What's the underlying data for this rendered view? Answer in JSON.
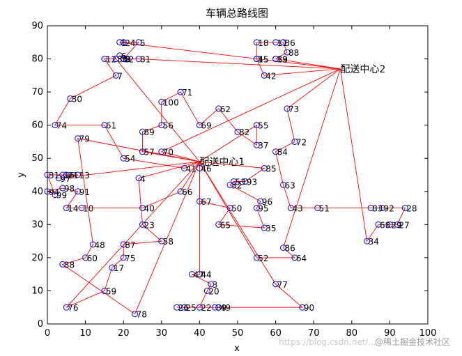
{
  "chart_data": {
    "type": "scatter",
    "title": "车辆总路线图",
    "xlabel": "x",
    "ylabel": "y",
    "xlim": [
      0,
      100
    ],
    "ylim": [
      0,
      90
    ],
    "xticks": [
      0,
      10,
      20,
      30,
      40,
      50,
      60,
      70,
      80,
      90,
      100
    ],
    "yticks": [
      0,
      10,
      20,
      30,
      40,
      50,
      60,
      70,
      80,
      90
    ],
    "grid": false,
    "marker_color": "#0000ff",
    "line_color": "#ff0000",
    "centers": [
      {
        "label": "配送中心1",
        "x": 40,
        "y": 49
      },
      {
        "label": "配送中心2",
        "x": 77,
        "y": 77
      }
    ],
    "points": [
      {
        "label": "1",
        "x": 19,
        "y": 85
      },
      {
        "label": "2",
        "x": 21,
        "y": 80
      },
      {
        "label": "3",
        "x": 43,
        "y": 12
      },
      {
        "label": "4",
        "x": 24,
        "y": 44
      },
      {
        "label": "5",
        "x": 24,
        "y": 85
      },
      {
        "label": "6",
        "x": 19,
        "y": 81
      },
      {
        "label": "7",
        "x": 18,
        "y": 75
      },
      {
        "label": "8",
        "x": 20,
        "y": 80
      },
      {
        "label": "9",
        "x": 20,
        "y": 80
      },
      {
        "label": "10",
        "x": 9,
        "y": 35
      },
      {
        "label": "11",
        "x": 60,
        "y": 85
      },
      {
        "label": "12",
        "x": 15,
        "y": 80
      },
      {
        "label": "13",
        "x": 8,
        "y": 45
      },
      {
        "label": "14",
        "x": 5,
        "y": 35
      },
      {
        "label": "15",
        "x": 55,
        "y": 80
      },
      {
        "label": "16",
        "x": 4,
        "y": 45
      },
      {
        "label": "17",
        "x": 17,
        "y": 17
      },
      {
        "label": "18",
        "x": 55,
        "y": 85
      },
      {
        "label": "19",
        "x": 60,
        "y": 80
      },
      {
        "label": "20",
        "x": 42,
        "y": 10
      },
      {
        "label": "21",
        "x": 5,
        "y": 45
      },
      {
        "label": "22",
        "x": 40,
        "y": 5
      },
      {
        "label": "23",
        "x": 25,
        "y": 30
      },
      {
        "label": "24",
        "x": 20,
        "y": 85
      },
      {
        "label": "25",
        "x": 36,
        "y": 5
      },
      {
        "label": "26",
        "x": 34,
        "y": 5
      },
      {
        "label": "27",
        "x": 92,
        "y": 30
      },
      {
        "label": "28",
        "x": 94,
        "y": 35
      },
      {
        "label": "29",
        "x": 90,
        "y": 30
      },
      {
        "label": "30",
        "x": 6,
        "y": 68
      },
      {
        "label": "31",
        "x": 0,
        "y": 45
      },
      {
        "label": "32",
        "x": 48,
        "y": 42
      },
      {
        "label": "33",
        "x": 60,
        "y": 80
      },
      {
        "label": "34",
        "x": 84,
        "y": 25
      },
      {
        "label": "35",
        "x": 57,
        "y": 29
      },
      {
        "label": "36",
        "x": 62,
        "y": 85
      },
      {
        "label": "37",
        "x": 55,
        "y": 54
      },
      {
        "label": "38",
        "x": 4,
        "y": 18
      },
      {
        "label": "39",
        "x": 44,
        "y": 5
      },
      {
        "label": "40",
        "x": 25,
        "y": 35
      },
      {
        "label": "41",
        "x": 36,
        "y": 47
      },
      {
        "label": "42",
        "x": 57,
        "y": 75
      },
      {
        "label": "43",
        "x": 64,
        "y": 35
      },
      {
        "label": "44",
        "x": 40,
        "y": 15
      },
      {
        "label": "45",
        "x": 55,
        "y": 80
      },
      {
        "label": "46",
        "x": 40,
        "y": 47
      },
      {
        "label": "47",
        "x": 38,
        "y": 15
      },
      {
        "label": "48",
        "x": 12,
        "y": 24
      },
      {
        "label": "49",
        "x": 45,
        "y": 5
      },
      {
        "label": "50",
        "x": 48,
        "y": 35
      },
      {
        "label": "51",
        "x": 71,
        "y": 35
      },
      {
        "label": "52",
        "x": 55,
        "y": 20
      },
      {
        "label": "53",
        "x": 49,
        "y": 43
      },
      {
        "label": "54",
        "x": 20,
        "y": 50
      },
      {
        "label": "55",
        "x": 55,
        "y": 60
      },
      {
        "label": "56",
        "x": 30,
        "y": 60
      },
      {
        "label": "57",
        "x": 25,
        "y": 52
      },
      {
        "label": "58",
        "x": 30,
        "y": 25
      },
      {
        "label": "59",
        "x": 15,
        "y": 10
      },
      {
        "label": "60",
        "x": 10,
        "y": 20
      },
      {
        "label": "61",
        "x": 15,
        "y": 60
      },
      {
        "label": "62",
        "x": 45,
        "y": 65
      },
      {
        "label": "63",
        "x": 62,
        "y": 42
      },
      {
        "label": "64",
        "x": 65,
        "y": 20
      },
      {
        "label": "65",
        "x": 45,
        "y": 30
      },
      {
        "label": "66",
        "x": 35,
        "y": 40
      },
      {
        "label": "67",
        "x": 40,
        "y": 37
      },
      {
        "label": "68",
        "x": 87,
        "y": 30
      },
      {
        "label": "69",
        "x": 40,
        "y": 60
      },
      {
        "label": "70",
        "x": 30,
        "y": 52
      },
      {
        "label": "71",
        "x": 35,
        "y": 70
      },
      {
        "label": "72",
        "x": 65,
        "y": 55
      },
      {
        "label": "73",
        "x": 63,
        "y": 65
      },
      {
        "label": "74",
        "x": 2,
        "y": 60
      },
      {
        "label": "75",
        "x": 20,
        "y": 20
      },
      {
        "label": "76",
        "x": 5,
        "y": 5
      },
      {
        "label": "77",
        "x": 60,
        "y": 12
      },
      {
        "label": "78",
        "x": 23,
        "y": 3
      },
      {
        "label": "79",
        "x": 8,
        "y": 56
      },
      {
        "label": "80",
        "x": 18,
        "y": 80
      },
      {
        "label": "81",
        "x": 24,
        "y": 80
      },
      {
        "label": "82",
        "x": 50,
        "y": 58
      },
      {
        "label": "83",
        "x": 85,
        "y": 35
      },
      {
        "label": "84",
        "x": 60,
        "y": 52
      },
      {
        "label": "85",
        "x": 57,
        "y": 47
      },
      {
        "label": "86",
        "x": 62,
        "y": 23
      },
      {
        "label": "87",
        "x": 20,
        "y": 24
      },
      {
        "label": "88",
        "x": 63,
        "y": 82
      },
      {
        "label": "89",
        "x": 25,
        "y": 58
      },
      {
        "label": "90",
        "x": 67,
        "y": 5
      },
      {
        "label": "91",
        "x": 8,
        "y": 40
      },
      {
        "label": "92",
        "x": 88,
        "y": 35
      },
      {
        "label": "93",
        "x": 52,
        "y": 43
      },
      {
        "label": "94",
        "x": 0,
        "y": 40
      },
      {
        "label": "95",
        "x": 55,
        "y": 35
      },
      {
        "label": "96",
        "x": 56,
        "y": 37
      },
      {
        "label": "97",
        "x": 3,
        "y": 44
      },
      {
        "label": "98",
        "x": 4,
        "y": 41
      },
      {
        "label": "99",
        "x": 2,
        "y": 39
      },
      {
        "label": "100",
        "x": 30,
        "y": 67
      }
    ],
    "routes": [
      [
        "c1",
        "41",
        "54",
        "61",
        "74",
        "30",
        "7",
        "12",
        "80",
        "c1"
      ],
      [
        "c1",
        "57",
        "89",
        "56",
        "100",
        "71",
        "69",
        "62",
        "82",
        "37",
        "55",
        "c1"
      ],
      [
        "c1",
        "4",
        "23",
        "58",
        "87",
        "75",
        "17",
        "59",
        "76",
        "c1"
      ],
      [
        "c1",
        "66",
        "40",
        "10",
        "14",
        "91",
        "98",
        "94",
        "99",
        "31",
        "16",
        "21",
        "13",
        "97",
        "c1"
      ],
      [
        "c1",
        "46",
        "67",
        "50",
        "65",
        "35",
        "95",
        "96",
        "32",
        "53",
        "93",
        "85",
        "c1"
      ],
      [
        "c1",
        "44",
        "47",
        "3",
        "20",
        "22",
        "25",
        "26",
        "49",
        "39",
        "90",
        "77",
        "c1"
      ],
      [
        "c1",
        "79",
        "48",
        "60",
        "38",
        "78",
        "c1"
      ],
      [
        "c2",
        "73",
        "72",
        "84",
        "63",
        "43",
        "51",
        "83",
        "92",
        "28",
        "27",
        "29",
        "68",
        "34",
        "c2"
      ],
      [
        "c2",
        "42",
        "15",
        "45",
        "18",
        "11",
        "36",
        "88",
        "33",
        "19",
        "c2"
      ],
      [
        "c2",
        "86",
        "64",
        "52",
        "c1"
      ],
      [
        "c2",
        "1",
        "24",
        "5",
        "9",
        "2",
        "6",
        "8",
        "81",
        "c2"
      ],
      [
        "c1",
        "70",
        "c2"
      ]
    ]
  },
  "watermark": "@稀土掘金技术社区",
  "watermark2": "https://blog.csdn.net/..."
}
